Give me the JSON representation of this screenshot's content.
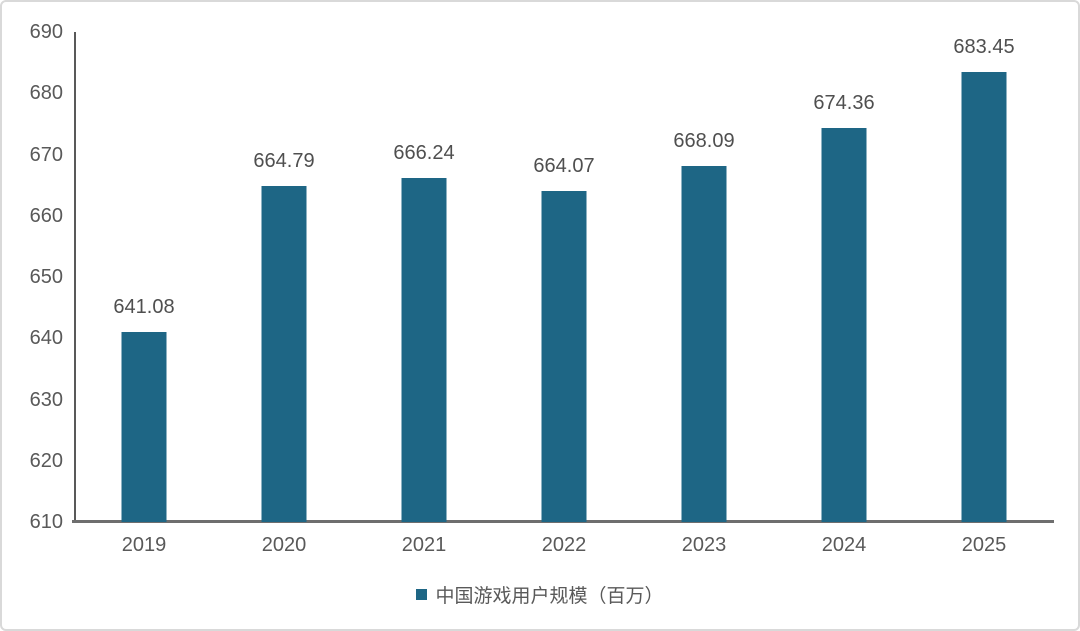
{
  "chart_data": {
    "type": "bar",
    "title": "",
    "xlabel": "",
    "ylabel": "",
    "categories": [
      "2019",
      "2020",
      "2021",
      "2022",
      "2023",
      "2024",
      "2025"
    ],
    "values": [
      641.08,
      664.79,
      666.24,
      664.07,
      668.09,
      674.36,
      683.45
    ],
    "data_labels": [
      "641.08",
      "664.79",
      "666.24",
      "664.07",
      "668.09",
      "674.36",
      "683.45"
    ],
    "ylim": [
      610,
      690
    ],
    "yticks": [
      610,
      620,
      630,
      640,
      650,
      660,
      670,
      680,
      690
    ],
    "grid": false,
    "legend_position": "bottom",
    "legend": [
      {
        "label": "中国游戏用户规模（百万）",
        "color": "#1e6685"
      }
    ],
    "colors": {
      "bar": "#1e6685",
      "axis": "#6e6e6e",
      "tick_text": "#595959",
      "frame_border": "#d9d9d9"
    }
  }
}
